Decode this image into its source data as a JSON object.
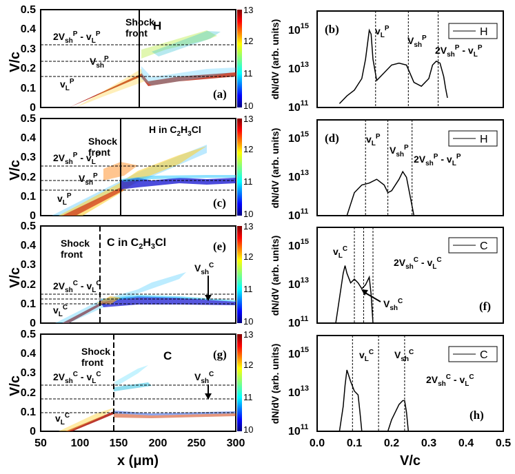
{
  "figure_caption": "",
  "chart_data": [
    {
      "id": "a",
      "type": "heatmap",
      "panel_label": "(a)",
      "species": "H",
      "xlabel": "",
      "ylabel": "V/c",
      "xlim": [
        50,
        300
      ],
      "ylim": [
        0,
        0.5
      ],
      "yticks": [
        "0",
        "0.1",
        "0.2",
        "0.3",
        "0.4",
        "0.5"
      ],
      "colorbar": {
        "min": 10,
        "max": 13,
        "ticks": [
          "10",
          "11",
          "12",
          "13"
        ]
      },
      "shock_front_x": 202,
      "shock_front_style": "solid",
      "hlines": [
        0.157,
        0.235,
        0.322
      ],
      "labels": {
        "front_l1": "Shock",
        "front_l2": "front",
        "species_text": "H",
        "l1_a": "2V",
        "l1_b": "sh",
        "l1_c": "P",
        "l1_d": " - v",
        "l1_e": "L",
        "l1_f": "P",
        "l2_a": "V",
        "l2_b": "sh",
        "l2_c": "P",
        "l3_a": "v",
        "l3_b": "L",
        "l3_c": "P"
      }
    },
    {
      "id": "b",
      "type": "line",
      "panel_label": "(b)",
      "legend": "H",
      "xlabel": "",
      "ylabel": "dN/dV (arb. units)",
      "xlim": [
        0,
        0.5
      ],
      "ylog": [
        11,
        16
      ],
      "yticks_base": "10",
      "yticks_exp": [
        "11",
        "13",
        "15"
      ],
      "vlines": [
        0.157,
        0.245,
        0.325
      ],
      "labels": {
        "a1": "v",
        "a2": "L",
        "a3": "P",
        "b1": "V",
        "b2": "sh",
        "b3": "P",
        "c1": "2V",
        "c2": "sh",
        "c3": "P",
        "c4": " - v",
        "c5": "L",
        "c6": "P"
      },
      "x": [
        0.06,
        0.08,
        0.1,
        0.12,
        0.13,
        0.14,
        0.145,
        0.15,
        0.16,
        0.18,
        0.2,
        0.22,
        0.24,
        0.26,
        0.28,
        0.3,
        0.31,
        0.32,
        0.33,
        0.34,
        0.345,
        0.35
      ],
      "y": [
        11.2,
        11.6,
        11.9,
        12.5,
        13.5,
        15.0,
        14.8,
        13.5,
        12.4,
        12.8,
        13.2,
        13.3,
        13.2,
        12.3,
        12.1,
        12.5,
        13.2,
        13.4,
        13.3,
        12.6,
        12.0,
        11.5
      ]
    },
    {
      "id": "c",
      "type": "heatmap",
      "panel_label": "(c)",
      "species": "H in C2H3Cl",
      "xlabel": "",
      "ylabel": "V/c",
      "xlim": [
        50,
        300
      ],
      "ylim": [
        0,
        0.5
      ],
      "yticks": [
        "0",
        "0.1",
        "0.2",
        "0.3",
        "0.4",
        "0.5"
      ],
      "colorbar": {
        "min": 10,
        "max": 13,
        "ticks": [
          "10",
          "11",
          "12",
          "13"
        ]
      },
      "shock_front_x": 175,
      "shock_front_style": "solid",
      "hlines": [
        0.13,
        0.18,
        0.255
      ],
      "labels": {
        "front_l1": "Shock",
        "front_l2": "front",
        "sp_a": "H in C",
        "sp_b": "2",
        "sp_c": "H",
        "sp_d": "3",
        "sp_e": "Cl",
        "l1_a": "2V",
        "l1_b": "sh",
        "l1_c": "P",
        "l1_d": " - v",
        "l1_e": "L",
        "l1_f": "P",
        "l2_a": "V",
        "l2_b": "sh",
        "l2_c": "P",
        "l3_a": "v",
        "l3_b": "L",
        "l3_c": "P"
      }
    },
    {
      "id": "d",
      "type": "line",
      "panel_label": "(d)",
      "legend": "H",
      "xlabel": "",
      "ylabel": "dN/dV (arb. units)",
      "xlim": [
        0,
        0.5
      ],
      "ylog": [
        11,
        16
      ],
      "yticks_base": "10",
      "yticks_exp": [
        "11",
        "13",
        "15"
      ],
      "vlines": [
        0.13,
        0.19,
        0.255
      ],
      "labels": {
        "a1": "v",
        "a2": "L",
        "a3": "P",
        "b1": "V",
        "b2": "sh",
        "b3": "P",
        "c1": "2V",
        "c2": "sh",
        "c3": "P",
        "c4": " - v",
        "c5": "L",
        "c6": "P"
      },
      "x": [
        0.08,
        0.09,
        0.1,
        0.12,
        0.14,
        0.16,
        0.18,
        0.19,
        0.2,
        0.22,
        0.23,
        0.24,
        0.25,
        0.255,
        0.26
      ],
      "y": [
        11.0,
        11.6,
        12.2,
        12.6,
        12.7,
        12.9,
        12.6,
        12.2,
        12.3,
        12.9,
        13.3,
        13.0,
        12.0,
        11.5,
        11.0
      ]
    },
    {
      "id": "e",
      "type": "heatmap",
      "panel_label": "(e)",
      "species": "C in C2H3Cl",
      "xlabel": "",
      "ylabel": "V/c",
      "xlim": [
        50,
        300
      ],
      "ylim": [
        0,
        0.5
      ],
      "yticks": [
        "0",
        "0.1",
        "0.2",
        "0.3",
        "0.4",
        "0.5"
      ],
      "colorbar": {
        "min": 10,
        "max": 13,
        "ticks": [
          "10",
          "11",
          "12",
          "13"
        ]
      },
      "shock_front_x": 145,
      "shock_front_style": "dashed",
      "hlines": [
        0.1,
        0.125,
        0.15
      ],
      "labels": {
        "front_l1": "Shock",
        "front_l2": "front",
        "sp_a": "C in C",
        "sp_b": "2",
        "sp_c": "H",
        "sp_d": "3",
        "sp_e": "Cl",
        "l1_a": "2V",
        "l1_b": "sh",
        "l1_c": "C",
        "l1_d": " - v",
        "l1_e": "L",
        "l1_f": "C",
        "l3_a": "v",
        "l3_b": "L",
        "l3_c": "C",
        "r_a": "V",
        "r_b": "sh",
        "r_c": "C"
      }
    },
    {
      "id": "f",
      "type": "line",
      "panel_label": "(f)",
      "legend": "C",
      "xlabel": "",
      "ylabel": "dN/dV (arb. units)",
      "xlim": [
        0,
        0.5
      ],
      "ylog": [
        11,
        16
      ],
      "yticks_base": "10",
      "yticks_exp": [
        "11",
        "13",
        "15"
      ],
      "vlines": [
        0.1,
        0.125,
        0.15
      ],
      "labels": {
        "a1": "v",
        "a2": "L",
        "a3": "C",
        "c1": "2V",
        "c2": "sh",
        "c3": "C",
        "c4": " - v",
        "c5": "L",
        "c6": "C",
        "d1": "V",
        "d2": "sh",
        "d3": "C"
      },
      "x": [
        0.05,
        0.06,
        0.07,
        0.075,
        0.08,
        0.09,
        0.1,
        0.11,
        0.12,
        0.13,
        0.14,
        0.145,
        0.15
      ],
      "y": [
        11.0,
        12.3,
        13.6,
        14.0,
        13.6,
        13.1,
        13.3,
        13.1,
        12.8,
        13.0,
        13.4,
        12.5,
        11.0
      ]
    },
    {
      "id": "g",
      "type": "heatmap",
      "panel_label": "(g)",
      "species": "C",
      "xlabel": "x (μm)",
      "ylabel": "V/c",
      "xlim": [
        50,
        300
      ],
      "ylim": [
        0,
        0.5
      ],
      "xticks": [
        "50",
        "100",
        "150",
        "200",
        "250",
        "300"
      ],
      "yticks": [
        "0",
        "0.1",
        "0.2",
        "0.3",
        "0.4",
        "0.5"
      ],
      "colorbar": {
        "min": 10,
        "max": 13,
        "ticks": [
          "10",
          "11",
          "12",
          "13"
        ]
      },
      "shock_front_x": 165,
      "shock_front_style": "dashed",
      "hlines": [
        0.095,
        0.165,
        0.235
      ],
      "labels": {
        "front_l1": "Shock",
        "front_l2": "front",
        "species_text": "C",
        "l1_a": "2V",
        "l1_b": "sh",
        "l1_c": "C",
        "l1_d": " - v",
        "l1_e": "L",
        "l1_f": "C",
        "l3_a": "v",
        "l3_b": "L",
        "l3_c": "C",
        "r_a": "V",
        "r_b": "sh",
        "r_c": "C"
      }
    },
    {
      "id": "h",
      "type": "line",
      "panel_label": "(h)",
      "legend": "C",
      "xlabel": "V/c",
      "ylabel": "dN/dV (arb. units)",
      "xlim": [
        0,
        0.5
      ],
      "ylog": [
        11,
        16
      ],
      "xticks": [
        "0.0",
        "0.1",
        "0.2",
        "0.3",
        "0.4",
        "0.5"
      ],
      "yticks_base": "10",
      "yticks_exp": [
        "11",
        "13",
        "15"
      ],
      "vlines": [
        0.095,
        0.165,
        0.235
      ],
      "labels": {
        "a1": "v",
        "a2": "L",
        "a3": "C",
        "b1": "V",
        "b2": "sh",
        "b3": "C",
        "c1": "2V",
        "c2": "sh",
        "c3": "C",
        "c4": " - v",
        "c5": "L",
        "c6": "C"
      },
      "x": [
        0.06,
        0.07,
        0.075,
        0.08,
        0.09,
        0.1,
        0.11,
        0.115,
        0.12,
        0.19,
        0.2,
        0.21,
        0.22,
        0.23,
        0.235,
        0.24,
        0.245
      ],
      "y": [
        11.0,
        12.3,
        13.4,
        14.2,
        13.6,
        13.1,
        12.9,
        12.0,
        11.0,
        11.0,
        11.6,
        12.0,
        12.4,
        12.6,
        12.6,
        12.0,
        11.0
      ]
    }
  ]
}
